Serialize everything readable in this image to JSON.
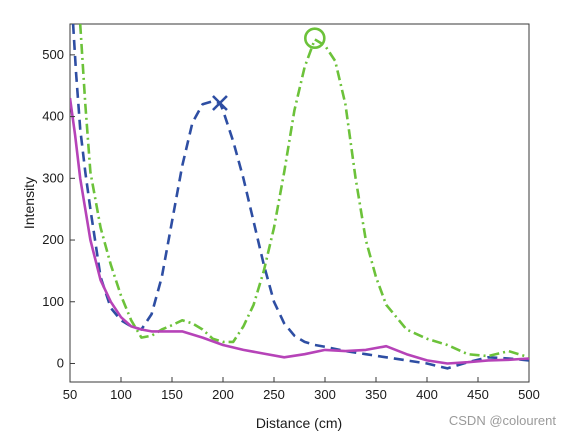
{
  "chart_data": {
    "type": "line",
    "xlabel": "Distance (cm)",
    "ylabel": "Intensity",
    "xlim": [
      50,
      500
    ],
    "ylim": [
      -30,
      550
    ],
    "xticks": [
      50,
      100,
      150,
      200,
      250,
      300,
      350,
      400,
      450,
      500
    ],
    "yticks": [
      0,
      100,
      200,
      300,
      400,
      500
    ],
    "grid": false,
    "series": [
      {
        "color": "#2e4ea3",
        "dash": "dashed",
        "x": [
          53,
          56,
          60,
          65,
          70,
          80,
          90,
          100,
          110,
          120,
          130,
          140,
          150,
          160,
          170,
          180,
          190,
          197,
          200,
          210,
          220,
          230,
          240,
          250,
          260,
          270,
          280,
          290,
          300,
          320,
          340,
          360,
          380,
          400,
          420,
          440,
          460,
          480,
          500
        ],
        "y": [
          550,
          470,
          380,
          310,
          250,
          140,
          90,
          70,
          60,
          55,
          80,
          140,
          230,
          320,
          390,
          420,
          425,
          422,
          410,
          360,
          300,
          230,
          160,
          100,
          65,
          45,
          35,
          30,
          27,
          20,
          15,
          10,
          5,
          0,
          -8,
          2,
          10,
          8,
          5
        ],
        "marker": {
          "x": 197,
          "y": 422,
          "shape": "cross"
        }
      },
      {
        "color": "#6cc23a",
        "dash": "dash-dot",
        "x": [
          60,
          65,
          70,
          80,
          90,
          100,
          110,
          120,
          130,
          140,
          150,
          160,
          170,
          180,
          190,
          200,
          210,
          220,
          230,
          240,
          250,
          260,
          270,
          280,
          290,
          300,
          310,
          320,
          330,
          340,
          350,
          360,
          380,
          400,
          420,
          440,
          460,
          480,
          500
        ],
        "y": [
          550,
          420,
          310,
          220,
          160,
          110,
          70,
          42,
          45,
          55,
          62,
          70,
          65,
          55,
          40,
          35,
          35,
          60,
          95,
          150,
          220,
          310,
          410,
          480,
          525,
          515,
          490,
          420,
          300,
          200,
          140,
          95,
          55,
          40,
          30,
          15,
          12,
          20,
          10
        ],
        "marker": {
          "x": 290,
          "y": 527,
          "shape": "circle"
        }
      },
      {
        "color": "#b643b8",
        "dash": "solid",
        "x": [
          50,
          55,
          60,
          70,
          80,
          90,
          100,
          110,
          120,
          130,
          150,
          160,
          180,
          200,
          220,
          240,
          260,
          280,
          300,
          320,
          340,
          360,
          380,
          400,
          420,
          440,
          460,
          480,
          500
        ],
        "y": [
          430,
          370,
          300,
          200,
          135,
          100,
          75,
          60,
          55,
          52,
          52,
          52,
          42,
          30,
          22,
          16,
          10,
          15,
          22,
          20,
          22,
          28,
          15,
          5,
          0,
          2,
          5,
          6,
          8
        ]
      }
    ]
  },
  "watermark": "CSDN @colourent"
}
